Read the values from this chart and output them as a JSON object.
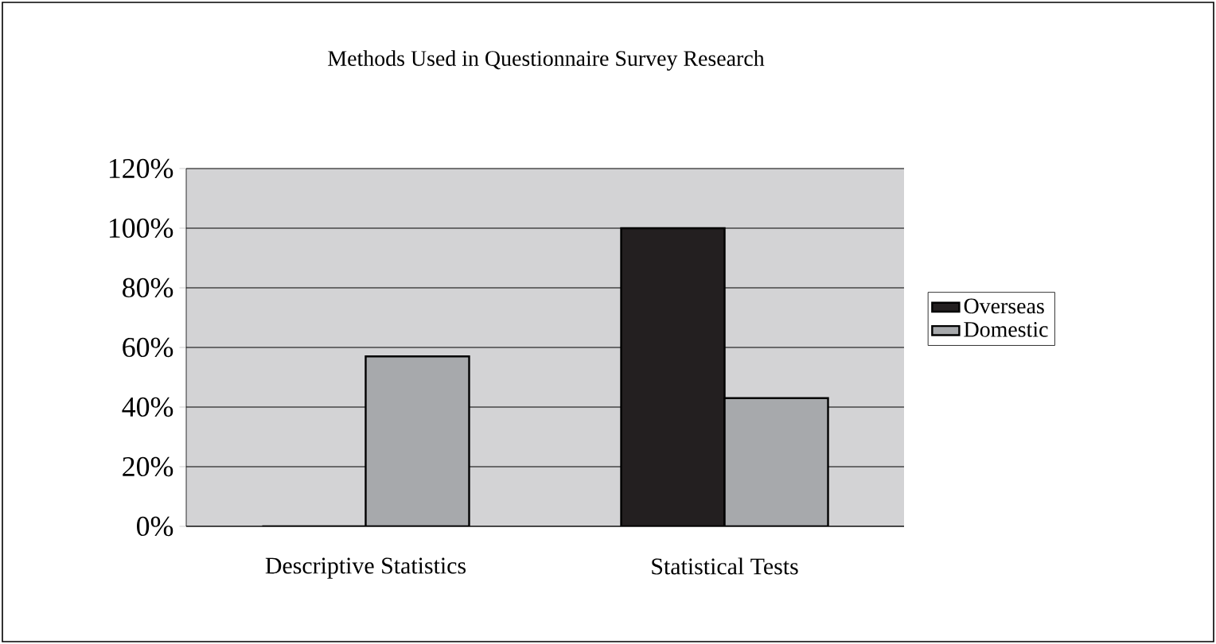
{
  "chart_data": {
    "type": "bar",
    "title": "Methods Used in Questionnaire Survey Research",
    "categories": [
      "Descriptive Statistics",
      "Statistical Tests"
    ],
    "series": [
      {
        "name": "Overseas",
        "color": "#231f20",
        "values": [
          0,
          100
        ]
      },
      {
        "name": "Domestic",
        "color": "#a7a9ac",
        "values": [
          57,
          43
        ]
      }
    ],
    "ylim": [
      0,
      120
    ],
    "yticks": [
      {
        "value": 0,
        "label": "0%"
      },
      {
        "value": 20,
        "label": "20%"
      },
      {
        "value": 40,
        "label": "40%"
      },
      {
        "value": 60,
        "label": "60%"
      },
      {
        "value": 80,
        "label": "80%"
      },
      {
        "value": 100,
        "label": "100%"
      },
      {
        "value": 120,
        "label": "120%"
      }
    ],
    "grid": "y",
    "legend": "right"
  }
}
